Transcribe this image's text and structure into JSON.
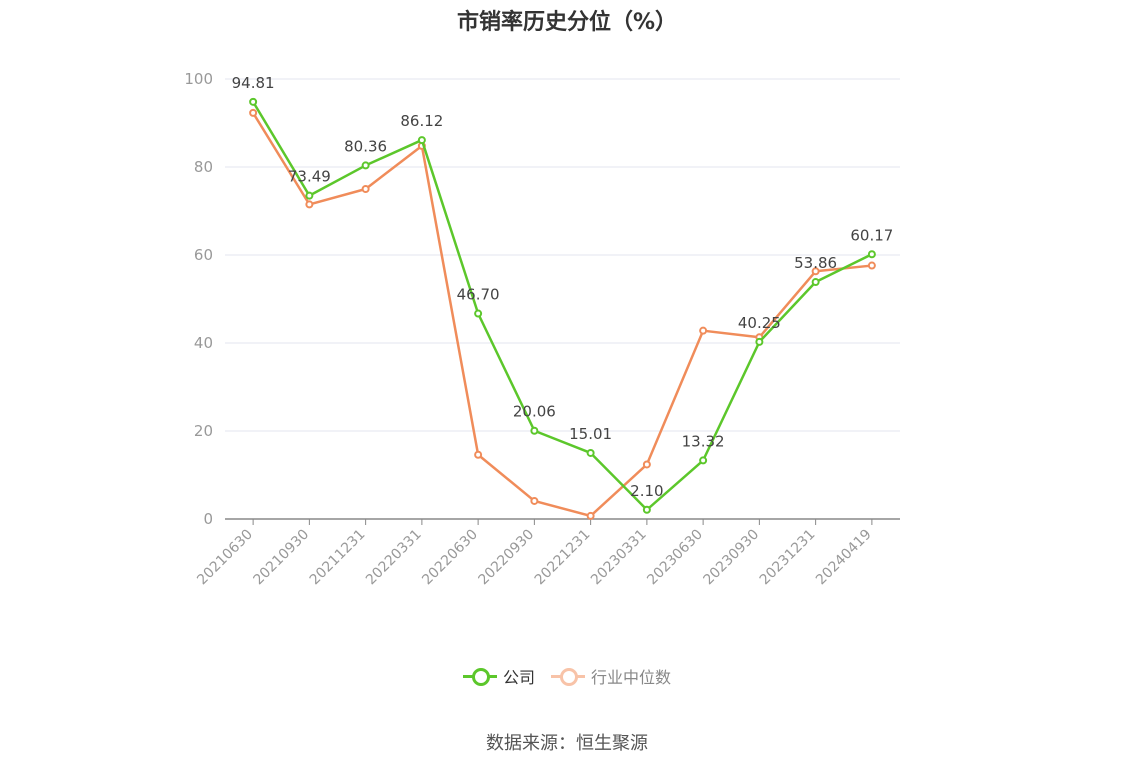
{
  "page": {
    "title": "市销率历史分位（%）",
    "source": "数据来源：恒生聚源"
  },
  "chart_data": {
    "type": "line",
    "title": "市销率历史分位（%）",
    "categories": [
      "20210630",
      "20210930",
      "20211231",
      "20220331",
      "20220630",
      "20220930",
      "20221231",
      "20230331",
      "20230630",
      "20230930",
      "20231231",
      "20240419"
    ],
    "series": [
      {
        "name": "公司",
        "color": "#5cc72b",
        "values": [
          94.81,
          73.49,
          80.36,
          86.12,
          46.7,
          20.06,
          15.01,
          2.1,
          13.32,
          40.25,
          53.86,
          60.17
        ],
        "labels": [
          "94.81",
          "73.49",
          "80.36",
          "86.12",
          "46.70",
          "20.06",
          "15.01",
          "2.10",
          "13.32",
          "40.25",
          "53.86",
          "60.17"
        ]
      },
      {
        "name": "行业中位数",
        "color": "#f08c5a",
        "values": [
          92.3,
          71.5,
          75.0,
          84.8,
          14.6,
          4.1,
          0.7,
          12.4,
          42.8,
          41.3,
          56.3,
          57.6
        ]
      }
    ],
    "ylim": [
      0,
      100
    ],
    "yticks": [
      0,
      20,
      40,
      60,
      80,
      100
    ],
    "grid": true,
    "legend": "bottom"
  }
}
